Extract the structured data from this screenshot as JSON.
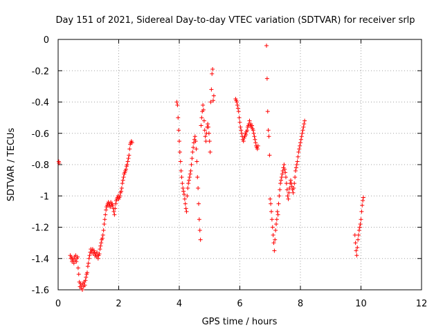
{
  "chart_data": {
    "type": "scatter",
    "title": "Day 151 of 2021, Sidereal Day-to-day VTEC variation (SDTVAR) for receiver srlp",
    "xlabel": "GPS time / hours",
    "ylabel": "SDTVAR / TECUs",
    "xlim": [
      0,
      12
    ],
    "ylim": [
      -1.6,
      0
    ],
    "xticks": [
      0,
      2,
      4,
      6,
      8,
      10,
      12
    ],
    "xtick_labels": [
      "0",
      "2",
      "4",
      "6",
      "8",
      "10",
      "12"
    ],
    "yticks": [
      0,
      -0.2,
      -0.4,
      -0.6,
      -0.8,
      -1,
      -1.2,
      -1.4,
      -1.6
    ],
    "ytick_labels": [
      "0",
      "-0.2",
      "-0.4",
      "-0.6",
      "-0.8",
      "-1",
      "-1.2",
      "-1.4",
      "-1.6"
    ],
    "grid": true,
    "marker": "+",
    "color": "#ff0000",
    "series": [
      {
        "name": "SDTVAR",
        "points": [
          [
            0.02,
            -0.78
          ],
          [
            0.03,
            -0.79
          ],
          [
            0.4,
            -1.38
          ],
          [
            0.42,
            -1.4
          ],
          [
            0.44,
            -1.39
          ],
          [
            0.46,
            -1.42
          ],
          [
            0.48,
            -1.4
          ],
          [
            0.5,
            -1.41
          ],
          [
            0.52,
            -1.43
          ],
          [
            0.54,
            -1.39
          ],
          [
            0.56,
            -1.41
          ],
          [
            0.58,
            -1.38
          ],
          [
            0.6,
            -1.42
          ],
          [
            0.62,
            -1.4
          ],
          [
            0.64,
            -1.39
          ],
          [
            0.66,
            -1.46
          ],
          [
            0.68,
            -1.5
          ],
          [
            0.7,
            -1.55
          ],
          [
            0.72,
            -1.58
          ],
          [
            0.74,
            -1.56
          ],
          [
            0.76,
            -1.59
          ],
          [
            0.78,
            -1.57
          ],
          [
            0.8,
            -1.6
          ],
          [
            0.82,
            -1.56
          ],
          [
            0.84,
            -1.58
          ],
          [
            0.86,
            -1.55
          ],
          [
            0.88,
            -1.57
          ],
          [
            0.9,
            -1.54
          ],
          [
            0.92,
            -1.52
          ],
          [
            0.94,
            -1.5
          ],
          [
            0.96,
            -1.49
          ],
          [
            0.98,
            -1.45
          ],
          [
            1.0,
            -1.43
          ],
          [
            1.02,
            -1.4
          ],
          [
            1.04,
            -1.38
          ],
          [
            1.06,
            -1.36
          ],
          [
            1.08,
            -1.34
          ],
          [
            1.1,
            -1.36
          ],
          [
            1.12,
            -1.35
          ],
          [
            1.14,
            -1.34
          ],
          [
            1.16,
            -1.37
          ],
          [
            1.18,
            -1.35
          ],
          [
            1.2,
            -1.36
          ],
          [
            1.22,
            -1.38
          ],
          [
            1.24,
            -1.37
          ],
          [
            1.26,
            -1.39
          ],
          [
            1.28,
            -1.36
          ],
          [
            1.3,
            -1.38
          ],
          [
            1.32,
            -1.4
          ],
          [
            1.34,
            -1.38
          ],
          [
            1.36,
            -1.37
          ],
          [
            1.38,
            -1.34
          ],
          [
            1.4,
            -1.32
          ],
          [
            1.42,
            -1.3
          ],
          [
            1.44,
            -1.28
          ],
          [
            1.46,
            -1.27
          ],
          [
            1.48,
            -1.25
          ],
          [
            1.5,
            -1.22
          ],
          [
            1.52,
            -1.18
          ],
          [
            1.54,
            -1.15
          ],
          [
            1.56,
            -1.12
          ],
          [
            1.58,
            -1.09
          ],
          [
            1.6,
            -1.07
          ],
          [
            1.62,
            -1.06
          ],
          [
            1.64,
            -1.05
          ],
          [
            1.66,
            -1.04
          ],
          [
            1.68,
            -1.06
          ],
          [
            1.7,
            -1.05
          ],
          [
            1.72,
            -1.07
          ],
          [
            1.74,
            -1.04
          ],
          [
            1.76,
            -1.06
          ],
          [
            1.78,
            -1.05
          ],
          [
            1.8,
            -1.06
          ],
          [
            1.82,
            -1.08
          ],
          [
            1.84,
            -1.1
          ],
          [
            1.86,
            -1.12
          ],
          [
            1.88,
            -1.08
          ],
          [
            1.9,
            -1.05
          ],
          [
            1.92,
            -1.03
          ],
          [
            1.94,
            -1.02
          ],
          [
            1.96,
            -1.01
          ],
          [
            1.98,
            -1.0
          ],
          [
            2.0,
            -1.02
          ],
          [
            2.02,
            -1.01
          ],
          [
            2.04,
            -1.0
          ],
          [
            2.06,
            -0.98
          ],
          [
            2.08,
            -0.97
          ],
          [
            2.1,
            -0.95
          ],
          [
            2.12,
            -0.92
          ],
          [
            2.14,
            -0.9
          ],
          [
            2.16,
            -0.88
          ],
          [
            2.18,
            -0.86
          ],
          [
            2.2,
            -0.85
          ],
          [
            2.22,
            -0.84
          ],
          [
            2.24,
            -0.83
          ],
          [
            2.26,
            -0.81
          ],
          [
            2.28,
            -0.8
          ],
          [
            2.3,
            -0.78
          ],
          [
            2.32,
            -0.76
          ],
          [
            2.34,
            -0.74
          ],
          [
            2.36,
            -0.7
          ],
          [
            2.38,
            -0.67
          ],
          [
            2.4,
            -0.66
          ],
          [
            2.42,
            -0.65
          ],
          [
            2.44,
            -0.66
          ],
          [
            3.92,
            -0.4
          ],
          [
            3.94,
            -0.42
          ],
          [
            3.96,
            -0.5
          ],
          [
            3.98,
            -0.58
          ],
          [
            4.0,
            -0.65
          ],
          [
            4.02,
            -0.72
          ],
          [
            4.04,
            -0.78
          ],
          [
            4.06,
            -0.84
          ],
          [
            4.08,
            -0.88
          ],
          [
            4.1,
            -0.92
          ],
          [
            4.12,
            -0.95
          ],
          [
            4.14,
            -0.97
          ],
          [
            4.16,
            -0.99
          ],
          [
            4.18,
            -1.02
          ],
          [
            4.2,
            -1.05
          ],
          [
            4.22,
            -1.08
          ],
          [
            4.24,
            -1.1
          ],
          [
            4.26,
            -1.0
          ],
          [
            4.28,
            -0.95
          ],
          [
            4.3,
            -0.92
          ],
          [
            4.32,
            -0.9
          ],
          [
            4.34,
            -0.88
          ],
          [
            4.36,
            -0.86
          ],
          [
            4.38,
            -0.84
          ],
          [
            4.4,
            -0.8
          ],
          [
            4.42,
            -0.76
          ],
          [
            4.44,
            -0.72
          ],
          [
            4.46,
            -0.69
          ],
          [
            4.48,
            -0.66
          ],
          [
            4.5,
            -0.64
          ],
          [
            4.52,
            -0.62
          ],
          [
            4.54,
            -0.65
          ],
          [
            4.56,
            -0.7
          ],
          [
            4.58,
            -0.78
          ],
          [
            4.6,
            -0.88
          ],
          [
            4.62,
            -0.95
          ],
          [
            4.64,
            -1.05
          ],
          [
            4.66,
            -1.15
          ],
          [
            4.68,
            -1.22
          ],
          [
            4.7,
            -1.28
          ],
          [
            4.72,
            -0.55
          ],
          [
            4.74,
            -0.5
          ],
          [
            4.76,
            -0.46
          ],
          [
            4.78,
            -0.42
          ],
          [
            4.8,
            -0.45
          ],
          [
            4.82,
            -0.52
          ],
          [
            4.84,
            -0.58
          ],
          [
            4.86,
            -0.62
          ],
          [
            4.88,
            -0.65
          ],
          [
            4.9,
            -0.6
          ],
          [
            4.92,
            -0.56
          ],
          [
            4.94,
            -0.54
          ],
          [
            4.96,
            -0.56
          ],
          [
            4.98,
            -0.6
          ],
          [
            5.0,
            -0.65
          ],
          [
            5.02,
            -0.72
          ],
          [
            5.04,
            -0.4
          ],
          [
            5.06,
            -0.32
          ],
          [
            5.08,
            -0.22
          ],
          [
            5.1,
            -0.19
          ],
          [
            5.12,
            -0.39
          ],
          [
            5.14,
            -0.36
          ],
          [
            5.86,
            -0.38
          ],
          [
            5.88,
            -0.39
          ],
          [
            5.9,
            -0.4
          ],
          [
            5.92,
            -0.42
          ],
          [
            5.94,
            -0.44
          ],
          [
            5.96,
            -0.46
          ],
          [
            5.98,
            -0.5
          ],
          [
            6.0,
            -0.53
          ],
          [
            6.02,
            -0.56
          ],
          [
            6.04,
            -0.58
          ],
          [
            6.06,
            -0.6
          ],
          [
            6.08,
            -0.62
          ],
          [
            6.1,
            -0.64
          ],
          [
            6.12,
            -0.65
          ],
          [
            6.14,
            -0.63
          ],
          [
            6.16,
            -0.62
          ],
          [
            6.18,
            -0.6
          ],
          [
            6.2,
            -0.61
          ],
          [
            6.22,
            -0.59
          ],
          [
            6.24,
            -0.58
          ],
          [
            6.26,
            -0.56
          ],
          [
            6.28,
            -0.55
          ],
          [
            6.3,
            -0.54
          ],
          [
            6.32,
            -0.52
          ],
          [
            6.34,
            -0.55
          ],
          [
            6.36,
            -0.54
          ],
          [
            6.38,
            -0.56
          ],
          [
            6.4,
            -0.55
          ],
          [
            6.42,
            -0.57
          ],
          [
            6.44,
            -0.58
          ],
          [
            6.46,
            -0.6
          ],
          [
            6.48,
            -0.62
          ],
          [
            6.5,
            -0.64
          ],
          [
            6.52,
            -0.66
          ],
          [
            6.54,
            -0.68
          ],
          [
            6.56,
            -0.69
          ],
          [
            6.58,
            -0.7
          ],
          [
            6.6,
            -0.68
          ],
          [
            6.88,
            -0.04
          ],
          [
            6.9,
            -0.25
          ],
          [
            6.92,
            -0.46
          ],
          [
            6.94,
            -0.58
          ],
          [
            6.96,
            -0.62
          ],
          [
            6.98,
            -0.74
          ],
          [
            7.0,
            -1.02
          ],
          [
            7.02,
            -1.05
          ],
          [
            7.04,
            -1.1
          ],
          [
            7.06,
            -1.15
          ],
          [
            7.08,
            -1.2
          ],
          [
            7.1,
            -1.25
          ],
          [
            7.12,
            -1.3
          ],
          [
            7.14,
            -1.35
          ],
          [
            7.16,
            -1.28
          ],
          [
            7.18,
            -1.22
          ],
          [
            7.2,
            -1.18
          ],
          [
            7.22,
            -1.15
          ],
          [
            7.24,
            -1.1
          ],
          [
            7.26,
            -1.12
          ],
          [
            7.28,
            -1.05
          ],
          [
            7.3,
            -1.0
          ],
          [
            7.32,
            -0.96
          ],
          [
            7.34,
            -0.92
          ],
          [
            7.36,
            -0.9
          ],
          [
            7.38,
            -0.88
          ],
          [
            7.4,
            -0.86
          ],
          [
            7.42,
            -0.84
          ],
          [
            7.44,
            -0.82
          ],
          [
            7.46,
            -0.8
          ],
          [
            7.48,
            -0.83
          ],
          [
            7.5,
            -0.85
          ],
          [
            7.52,
            -0.88
          ],
          [
            7.54,
            -0.92
          ],
          [
            7.56,
            -0.96
          ],
          [
            7.58,
            -1.0
          ],
          [
            7.6,
            -1.02
          ],
          [
            7.62,
            -0.98
          ],
          [
            7.64,
            -0.95
          ],
          [
            7.66,
            -0.92
          ],
          [
            7.68,
            -0.9
          ],
          [
            7.7,
            -0.92
          ],
          [
            7.72,
            -0.94
          ],
          [
            7.74,
            -0.96
          ],
          [
            7.76,
            -0.98
          ],
          [
            7.78,
            -0.95
          ],
          [
            7.8,
            -0.92
          ],
          [
            7.82,
            -0.88
          ],
          [
            7.84,
            -0.84
          ],
          [
            7.86,
            -0.82
          ],
          [
            7.88,
            -0.8
          ],
          [
            7.9,
            -0.78
          ],
          [
            7.92,
            -0.75
          ],
          [
            7.94,
            -0.72
          ],
          [
            7.96,
            -0.7
          ],
          [
            7.98,
            -0.68
          ],
          [
            8.0,
            -0.66
          ],
          [
            8.02,
            -0.64
          ],
          [
            8.04,
            -0.62
          ],
          [
            8.06,
            -0.6
          ],
          [
            8.08,
            -0.58
          ],
          [
            8.1,
            -0.56
          ],
          [
            8.12,
            -0.54
          ],
          [
            8.14,
            -0.52
          ],
          [
            9.8,
            -1.25
          ],
          [
            9.82,
            -1.3
          ],
          [
            9.84,
            -1.35
          ],
          [
            9.86,
            -1.38
          ],
          [
            9.88,
            -1.33
          ],
          [
            9.9,
            -1.28
          ],
          [
            9.92,
            -1.25
          ],
          [
            9.94,
            -1.22
          ],
          [
            9.96,
            -1.2
          ],
          [
            9.98,
            -1.18
          ],
          [
            10.0,
            -1.15
          ],
          [
            10.02,
            -1.1
          ],
          [
            10.04,
            -1.06
          ],
          [
            10.06,
            -1.03
          ],
          [
            10.08,
            -1.01
          ]
        ]
      }
    ]
  }
}
